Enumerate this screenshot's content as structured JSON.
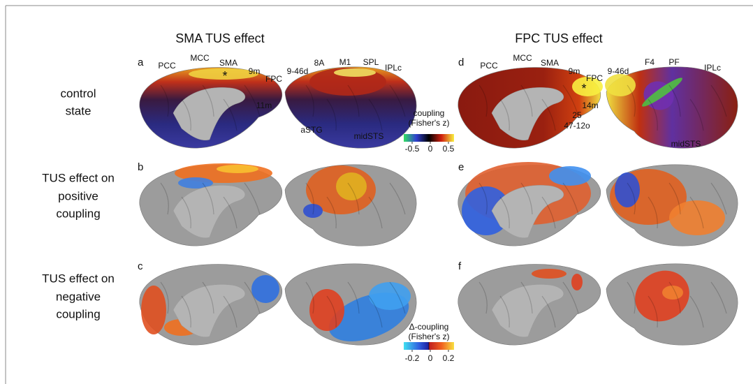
{
  "columns": [
    {
      "title": "SMA TUS effect"
    },
    {
      "title": "FPC TUS effect"
    }
  ],
  "rows": [
    {
      "label_lines": [
        "control",
        "state"
      ]
    },
    {
      "label_lines": [
        "TUS effect on",
        "positive",
        "coupling"
      ]
    },
    {
      "label_lines": [
        "TUS effect on",
        "negative",
        "coupling"
      ]
    }
  ],
  "panels": [
    {
      "letter": "a",
      "marker": "*",
      "labels": [
        "PCC",
        "MCC",
        "SMA",
        "9m",
        "FPC",
        "11m",
        "9-46d",
        "8A",
        "M1",
        "SPL",
        "IPLc",
        "aSTG",
        "midSTS"
      ]
    },
    {
      "letter": "b"
    },
    {
      "letter": "c"
    },
    {
      "letter": "d",
      "marker": "*",
      "labels": [
        "PCC",
        "MCC",
        "SMA",
        "9m",
        "FPC",
        "14m",
        "25",
        "47-12o",
        "9-46d",
        "F4",
        "PF",
        "IPLc",
        "midSTS"
      ]
    },
    {
      "letter": "e"
    },
    {
      "letter": "f"
    }
  ],
  "colorbars": [
    {
      "title_lines": [
        "coupling",
        "(Fisher's z)"
      ],
      "ticks": [
        "-0.5",
        "0",
        "0.5"
      ]
    },
    {
      "title_lines": [
        "Δ-coupling",
        "(Fisher's z)"
      ],
      "ticks": [
        "-0.2",
        "0",
        "0.2"
      ]
    }
  ]
}
